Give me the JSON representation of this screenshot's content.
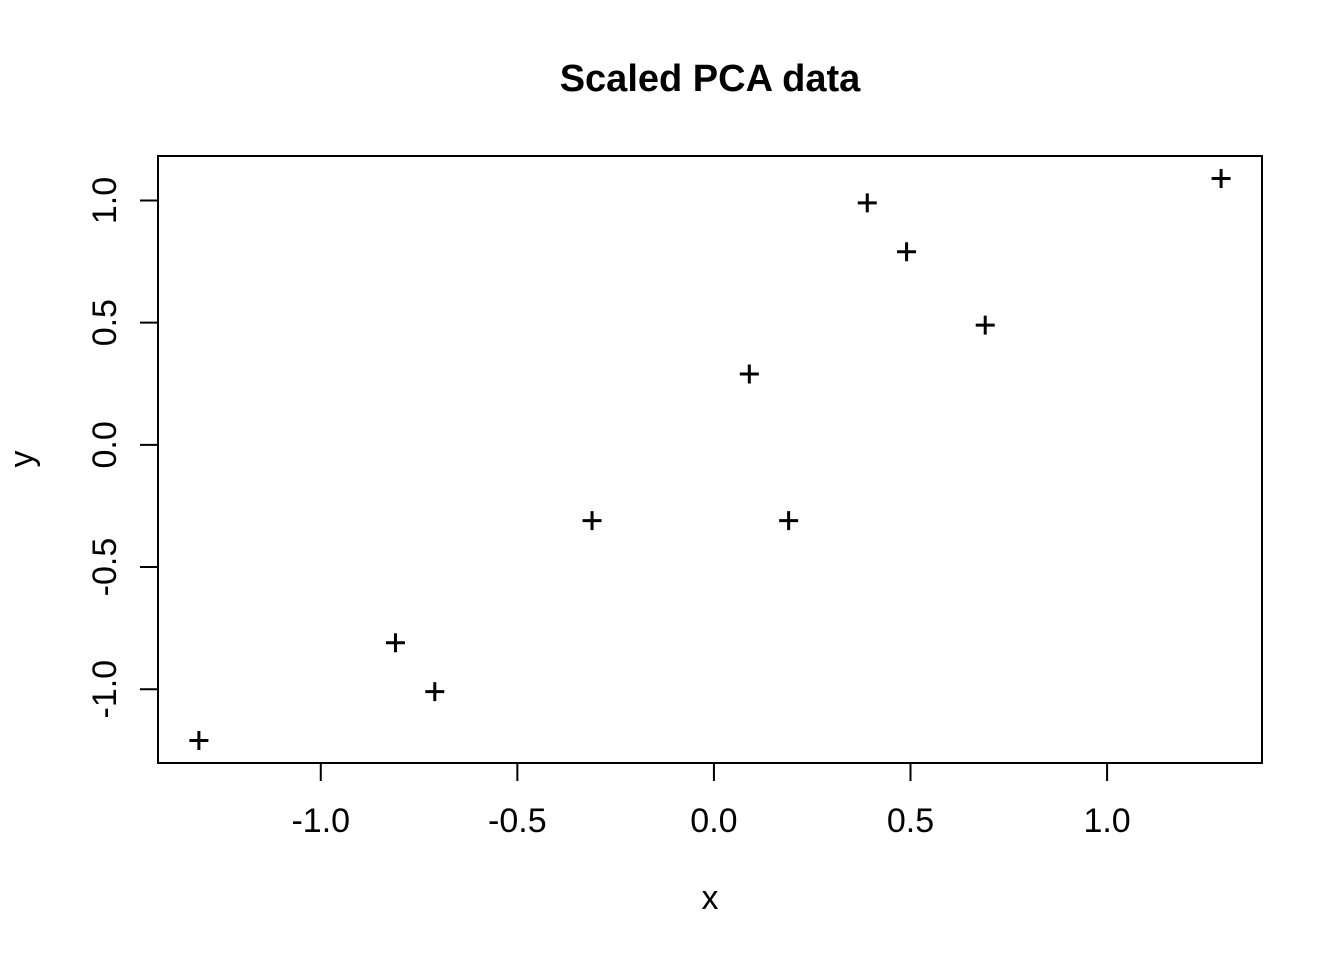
{
  "chart_data": {
    "type": "scatter",
    "title": "Scaled PCA data",
    "xlabel": "x",
    "ylabel": "y",
    "marker": "plus",
    "marker_color": "#000000",
    "background_color": "#ffffff",
    "grid": false,
    "legend": null,
    "xlim": [
      -1.414,
      1.394
    ],
    "ylim": [
      -1.302,
      1.182
    ],
    "x_ticks": {
      "values": [
        -1.0,
        -0.5,
        0.0,
        0.5,
        1.0
      ],
      "labels": [
        "-1.0",
        "-0.5",
        "0.0",
        "0.5",
        "1.0"
      ]
    },
    "y_ticks": {
      "values": [
        -1.0,
        -0.5,
        0.0,
        0.5,
        1.0
      ],
      "labels": [
        "-1.0",
        "-0.5",
        "0.0",
        "0.5",
        "1.0"
      ]
    },
    "points": [
      {
        "x": 0.69,
        "y": 0.49
      },
      {
        "x": -1.31,
        "y": -1.21
      },
      {
        "x": 0.39,
        "y": 0.99
      },
      {
        "x": 0.09,
        "y": 0.29
      },
      {
        "x": 1.29,
        "y": 1.09
      },
      {
        "x": 0.49,
        "y": 0.79
      },
      {
        "x": 0.19,
        "y": -0.31
      },
      {
        "x": -0.81,
        "y": -0.81
      },
      {
        "x": -0.31,
        "y": -0.31
      },
      {
        "x": -0.71,
        "y": -1.01
      }
    ]
  }
}
